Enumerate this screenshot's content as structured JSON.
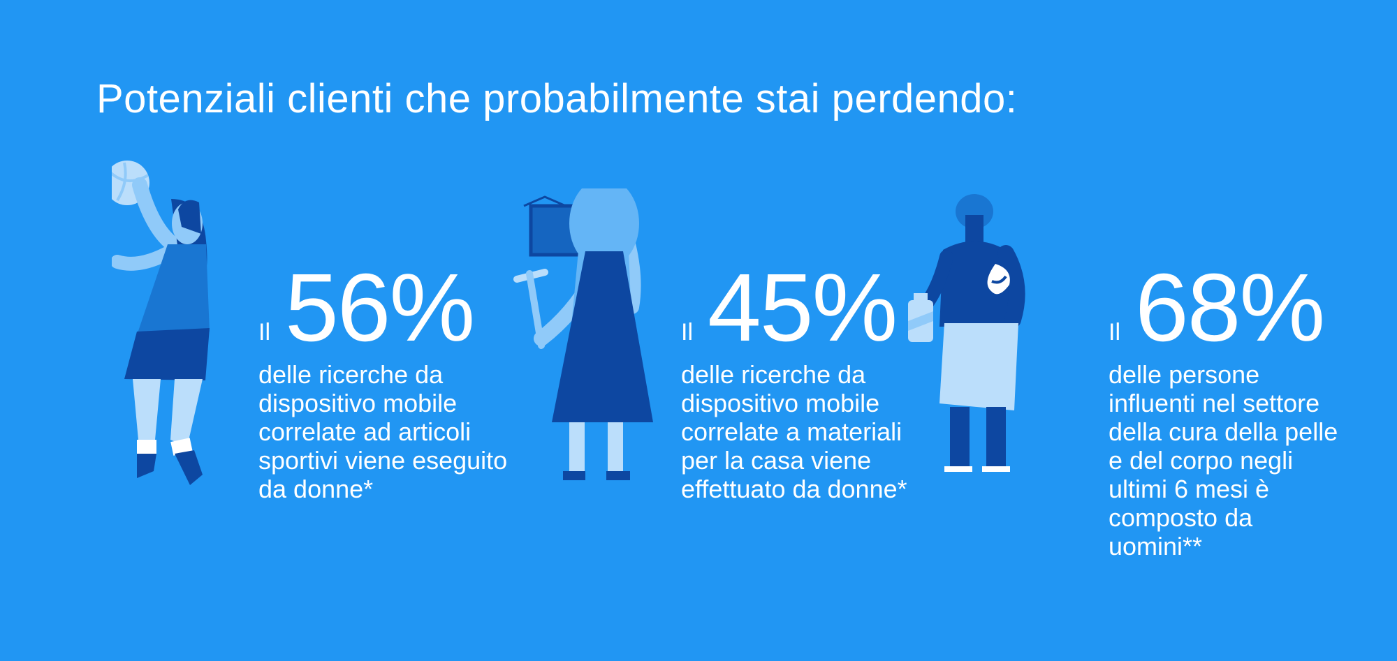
{
  "title": "Potenziali clienti che probabilmente stai perdendo:",
  "colors": {
    "background": "#2196F3",
    "dark_blue": "#0D47A1",
    "mid_blue": "#1976D2",
    "light_blue": "#90CAF9",
    "pale_blue": "#BBDEFB",
    "white": "#FFFFFF"
  },
  "stats": [
    {
      "prefix": "Il",
      "percent": "56%",
      "description": "delle ricerche da\ndispositivo mobile\ncorrelate ad articoli\nsportivi viene eseguito\nda donne*"
    },
    {
      "prefix": "Il",
      "percent": "45%",
      "description": "delle ricerche da\ndispositivo mobile\ncorrelate a materiali\nper la casa viene\neffettuato da donne*"
    },
    {
      "prefix": "Il",
      "percent": "68%",
      "description": "delle persone\ninfluenti nel settore\ndella cura della pelle\ne del corpo negli\nultimi 6 mesi è\ncomposto da\nuomini**"
    }
  ],
  "illustrations": [
    {
      "icon": "volleyball-player-woman-icon"
    },
    {
      "icon": "woman-with-hammer-and-frame-icon"
    },
    {
      "icon": "man-with-towel-and-lotion-icon"
    }
  ]
}
